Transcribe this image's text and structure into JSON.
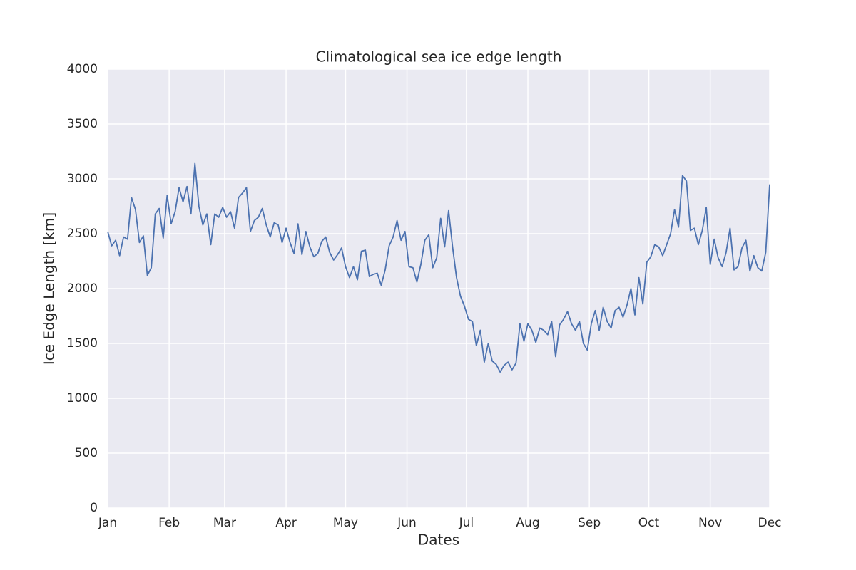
{
  "chart_data": {
    "type": "line",
    "title": "Climatological sea ice edge length",
    "xlabel": "Dates",
    "ylabel": "Ice Edge Length [km]",
    "x": [
      0,
      2,
      4,
      6,
      8,
      10,
      12,
      14,
      16,
      18,
      20,
      22,
      24,
      26,
      28,
      30,
      32,
      34,
      36,
      38,
      40,
      42,
      44,
      46,
      48,
      50,
      52,
      54,
      56,
      58,
      60,
      62,
      64,
      66,
      68,
      70,
      72,
      74,
      76,
      78,
      80,
      82,
      84,
      86,
      88,
      90,
      92,
      94,
      96,
      98,
      100,
      102,
      104,
      106,
      108,
      110,
      112,
      114,
      116,
      118,
      120,
      122,
      124,
      126,
      128,
      130,
      132,
      134,
      136,
      138,
      140,
      142,
      144,
      146,
      148,
      150,
      152,
      154,
      156,
      158,
      160,
      162,
      164,
      166,
      168,
      170,
      172,
      174,
      176,
      178,
      180,
      182,
      184,
      186,
      188,
      190,
      192,
      194,
      196,
      198,
      200,
      202,
      204,
      206,
      208,
      210,
      212,
      214,
      216,
      218,
      220,
      222,
      224,
      226,
      228,
      230,
      232,
      234,
      236,
      238,
      240,
      242,
      244,
      246,
      248,
      250,
      252,
      254,
      256,
      258,
      260,
      262,
      264,
      266,
      268,
      270,
      272,
      274,
      276,
      278,
      280,
      282,
      284,
      286,
      288,
      290,
      292,
      294,
      296,
      298,
      300,
      302,
      304,
      306,
      308,
      310,
      312,
      314,
      316,
      318,
      320,
      322,
      324,
      326,
      328,
      330,
      332,
      334
    ],
    "series": [
      {
        "name": "Ice edge length",
        "color": "#4c72b0",
        "values": [
          2520,
          2390,
          2440,
          2300,
          2470,
          2450,
          2830,
          2720,
          2420,
          2480,
          2120,
          2190,
          2680,
          2730,
          2460,
          2850,
          2590,
          2700,
          2920,
          2790,
          2930,
          2680,
          3140,
          2750,
          2580,
          2680,
          2400,
          2680,
          2650,
          2740,
          2650,
          2700,
          2550,
          2830,
          2870,
          2920,
          2520,
          2620,
          2650,
          2730,
          2580,
          2470,
          2600,
          2580,
          2420,
          2550,
          2420,
          2320,
          2590,
          2310,
          2520,
          2380,
          2290,
          2320,
          2430,
          2470,
          2330,
          2260,
          2310,
          2370,
          2200,
          2100,
          2200,
          2080,
          2340,
          2350,
          2110,
          2130,
          2140,
          2030,
          2170,
          2390,
          2470,
          2620,
          2440,
          2520,
          2200,
          2190,
          2060,
          2220,
          2440,
          2490,
          2190,
          2280,
          2640,
          2380,
          2710,
          2380,
          2100,
          1930,
          1840,
          1720,
          1700,
          1480,
          1620,
          1330,
          1500,
          1340,
          1310,
          1240,
          1300,
          1330,
          1260,
          1320,
          1680,
          1520,
          1680,
          1620,
          1510,
          1640,
          1620,
          1580,
          1700,
          1380,
          1670,
          1720,
          1790,
          1680,
          1620,
          1700,
          1500,
          1440,
          1680,
          1800,
          1620,
          1830,
          1700,
          1640,
          1800,
          1830,
          1740,
          1850,
          2000,
          1760,
          2100,
          1860,
          2240,
          2290,
          2400,
          2380,
          2300,
          2400,
          2500,
          2720,
          2560,
          3030,
          2980,
          2530,
          2550,
          2400,
          2530,
          2740,
          2220,
          2450,
          2280,
          2200,
          2330,
          2550,
          2170,
          2200,
          2370,
          2440,
          2160,
          2300,
          2190,
          2160,
          2330,
          2950
        ]
      }
    ],
    "xlim": [
      0,
      334
    ],
    "xticks": [
      {
        "value": 0,
        "label": "Jan"
      },
      {
        "value": 31,
        "label": "Feb"
      },
      {
        "value": 59,
        "label": "Mar"
      },
      {
        "value": 90,
        "label": "Apr"
      },
      {
        "value": 120,
        "label": "May"
      },
      {
        "value": 151,
        "label": "Jun"
      },
      {
        "value": 181,
        "label": "Jul"
      },
      {
        "value": 212,
        "label": "Aug"
      },
      {
        "value": 243,
        "label": "Sep"
      },
      {
        "value": 273,
        "label": "Oct"
      },
      {
        "value": 304,
        "label": "Nov"
      },
      {
        "value": 334,
        "label": "Dec"
      }
    ],
    "ylim": [
      0,
      4000
    ],
    "yticks": [
      0,
      500,
      1000,
      1500,
      2000,
      2500,
      3000,
      3500,
      4000
    ],
    "grid": true
  }
}
